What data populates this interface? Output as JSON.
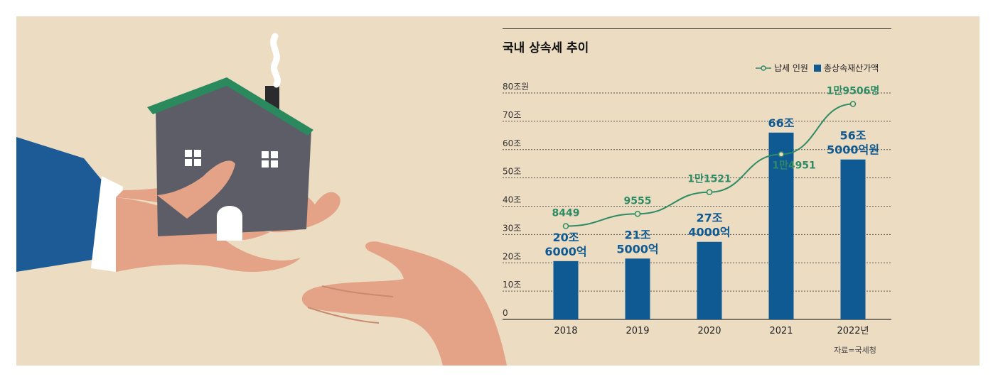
{
  "chart_data": {
    "type": "bar",
    "title": "국내 상속세 추이",
    "categories": [
      "2018",
      "2019",
      "2020",
      "2021",
      "2022년"
    ],
    "y_ticks": [
      "80조원",
      "70조",
      "60조",
      "50조",
      "40조",
      "30조",
      "20조",
      "10조",
      "0"
    ],
    "ylim": [
      0,
      80
    ],
    "bar_series": {
      "name": "총상속재산가액",
      "values": [
        20.6,
        21.5,
        27.4,
        66,
        56.5
      ],
      "labels": [
        [
          "20조",
          "6000억"
        ],
        [
          "21조",
          "5000억"
        ],
        [
          "27조",
          "4000억"
        ],
        [
          "66조"
        ],
        [
          "56조",
          "5000억원"
        ]
      ],
      "color": "#0f5a93"
    },
    "line_series": {
      "name": "납세 인원",
      "values": [
        8449,
        9555,
        11521,
        14951,
        19506
      ],
      "labels": [
        "8449",
        "9555",
        "1만1521",
        "1만4951",
        "1만9506명"
      ],
      "color": "#2e8b64"
    },
    "legend_position": "top-right",
    "grid": true
  },
  "source": "자료=국세청",
  "colors": {
    "background": "#ecdcc2",
    "bar": "#0f5a93",
    "line": "#2e8b64"
  },
  "illustration": {
    "icons": [
      "house-icon",
      "giving-hand-icon",
      "receiving-hand-icon"
    ]
  }
}
